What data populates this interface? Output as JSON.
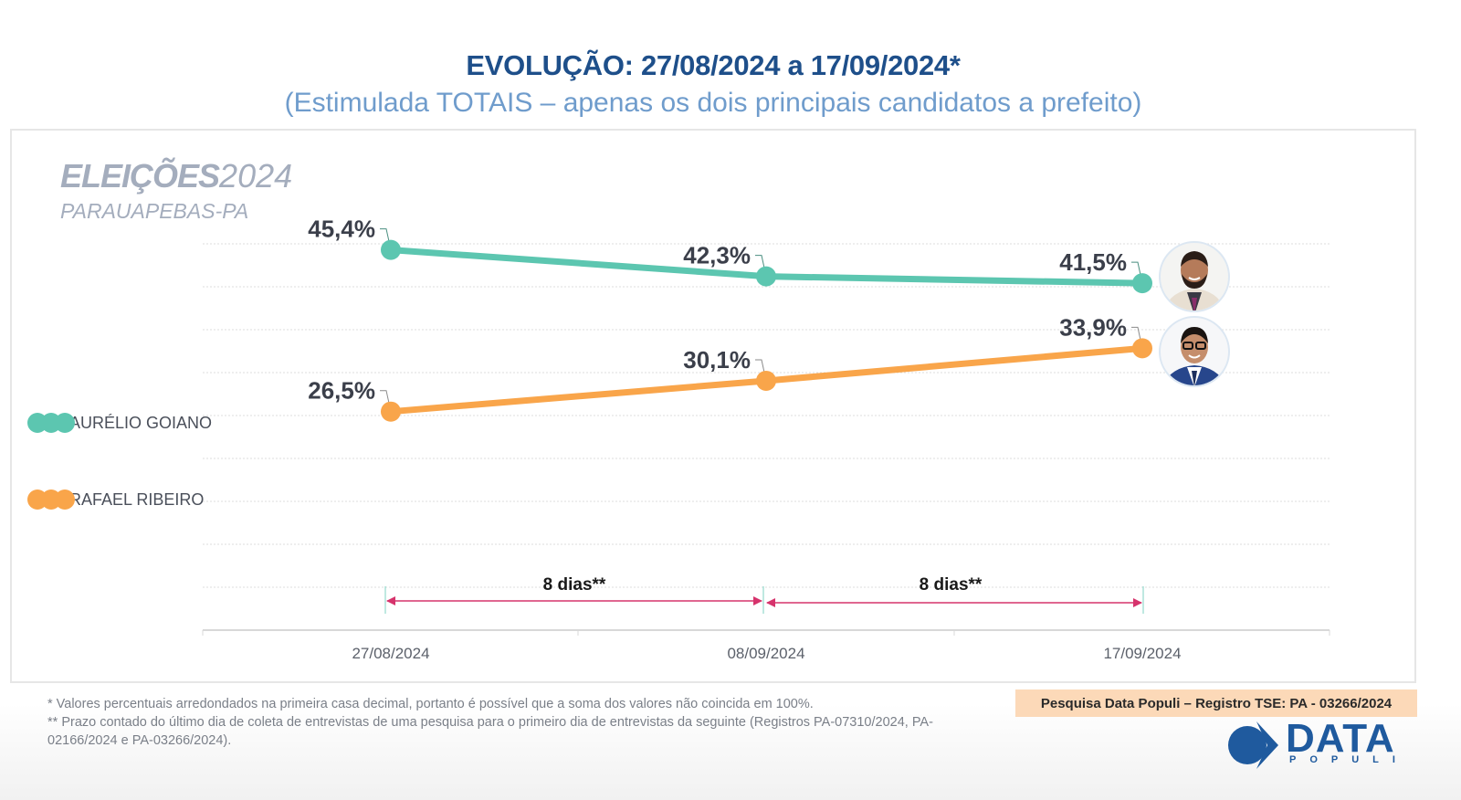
{
  "header": {
    "title": "EVOLUÇÃO: 27/08/2024 a 17/09/2024*",
    "subtitle": "(Estimulada TOTAIS – apenas os dois principais candidatos a prefeito)"
  },
  "brand": {
    "elections_bold": "ELEIÇÕES",
    "elections_year": "2024",
    "city": "PARAUAPEBAS-PA"
  },
  "chart_data": {
    "type": "line",
    "title": "EVOLUÇÃO: 27/08/2024 a 17/09/2024*",
    "subtitle": "(Estimulada TOTAIS – apenas os dois principais candidatos a prefeito)",
    "x": [
      "27/08/2024",
      "08/09/2024",
      "17/09/2024"
    ],
    "xlabel": "",
    "ylabel": "",
    "ylim": [
      0,
      48
    ],
    "grid": true,
    "legend_position": "left",
    "series": [
      {
        "name": "AURÉLIO GOIANO",
        "color": "#5cc6b0",
        "values": [
          45.4,
          42.3,
          41.5
        ],
        "labels": [
          "45,4%",
          "42,3%",
          "41,5%"
        ]
      },
      {
        "name": "RAFAEL RIBEIRO",
        "color": "#f9a54a",
        "values": [
          26.5,
          30.1,
          33.9
        ],
        "labels": [
          "26,5%",
          "30,1%",
          "33,9%"
        ]
      }
    ],
    "intervals": [
      {
        "from": "27/08/2024",
        "to": "08/09/2024",
        "label": "8 dias**"
      },
      {
        "from": "08/09/2024",
        "to": "17/09/2024",
        "label": "8 dias**"
      }
    ],
    "interval_color": "#d6336c"
  },
  "footnotes": [
    "*  Valores percentuais arredondados na primeira casa decimal, portanto é possível que a soma dos valores não coincida em 100%.",
    "** Prazo contado do último dia de coleta de entrevistas de uma pesquisa para o primeiro dia de entrevistas da seguinte (Registros PA-07310/2024, PA-02166/2024 e PA-03266/2024)."
  ],
  "register": "Pesquisa Data Populi – Registro TSE: PA - 03266/2024",
  "logo": {
    "main": "DATA",
    "sub": "POPULI"
  }
}
